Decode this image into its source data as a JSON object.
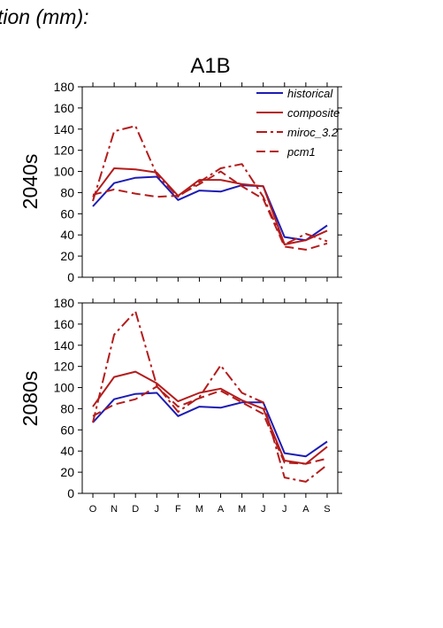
{
  "header_text": "tion (mm):",
  "panel_title": "A1B",
  "legend": [
    {
      "label": "historical",
      "color": "#1c1cb4",
      "dash": ""
    },
    {
      "label": "composite",
      "color": "#b41c1c",
      "dash": ""
    },
    {
      "label": "miroc_3.2",
      "color": "#b41c1c",
      "dash": "12,4,3,4"
    },
    {
      "label": "pcm1",
      "color": "#b41c1c",
      "dash": "10,5"
    }
  ],
  "chart_data": [
    {
      "type": "line",
      "title": "A1B",
      "ylabel": "2040s",
      "xlabel": "",
      "categories": [
        "O",
        "N",
        "D",
        "J",
        "F",
        "M",
        "A",
        "M",
        "J",
        "J",
        "A",
        "S"
      ],
      "ylim": [
        0,
        180
      ],
      "yticks": [
        0,
        20,
        40,
        60,
        80,
        100,
        120,
        140,
        160,
        180
      ],
      "grid": false,
      "legend_position": "top-right",
      "series": [
        {
          "name": "historical",
          "color": "#1c1cb4",
          "dash": "",
          "values": [
            67,
            89,
            94,
            95,
            73,
            82,
            81,
            87,
            86,
            38,
            35,
            49
          ]
        },
        {
          "name": "composite",
          "color": "#b41c1c",
          "dash": "",
          "values": [
            76,
            103,
            102,
            99,
            77,
            92,
            92,
            88,
            86,
            31,
            35,
            44
          ]
        },
        {
          "name": "miroc_3.2",
          "color": "#b41c1c",
          "dash": "12,4,3,4",
          "values": [
            72,
            138,
            143,
            97,
            76,
            90,
            103,
            107,
            76,
            31,
            41,
            34
          ]
        },
        {
          "name": "pcm1",
          "color": "#b41c1c",
          "dash": "10,5",
          "values": [
            78,
            83,
            79,
            76,
            77,
            88,
            100,
            86,
            74,
            29,
            26,
            32
          ]
        }
      ]
    },
    {
      "type": "line",
      "title": "",
      "ylabel": "2080s",
      "xlabel": "",
      "categories": [
        "O",
        "N",
        "D",
        "J",
        "F",
        "M",
        "A",
        "M",
        "J",
        "J",
        "A",
        "S"
      ],
      "ylim": [
        0,
        180
      ],
      "yticks": [
        0,
        20,
        40,
        60,
        80,
        100,
        120,
        140,
        160,
        180
      ],
      "grid": false,
      "legend_position": "none",
      "series": [
        {
          "name": "historical",
          "color": "#1c1cb4",
          "dash": "",
          "values": [
            67,
            89,
            94,
            95,
            73,
            82,
            81,
            86,
            86,
            38,
            35,
            49
          ]
        },
        {
          "name": "composite",
          "color": "#b41c1c",
          "dash": "",
          "values": [
            82,
            110,
            115,
            104,
            87,
            95,
            99,
            88,
            80,
            31,
            28,
            44
          ]
        },
        {
          "name": "miroc_3.2",
          "color": "#b41c1c",
          "dash": "12,4,3,4",
          "values": [
            67,
            150,
            172,
            102,
            77,
            91,
            121,
            95,
            86,
            15,
            11,
            27
          ]
        },
        {
          "name": "pcm1",
          "color": "#b41c1c",
          "dash": "10,5",
          "values": [
            73,
            84,
            89,
            101,
            82,
            90,
            97,
            86,
            75,
            29,
            28,
            33
          ]
        }
      ]
    }
  ]
}
